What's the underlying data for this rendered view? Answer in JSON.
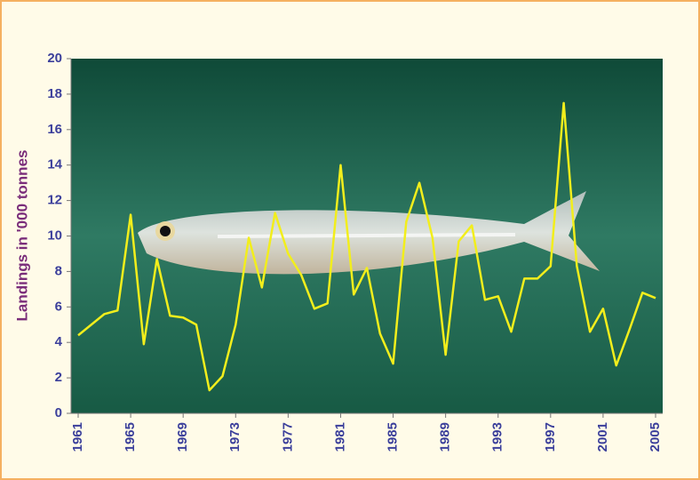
{
  "chart_data": {
    "type": "line",
    "y_label": "Landings in '000 tonnes",
    "x": [
      1961,
      1962,
      1963,
      1964,
      1965,
      1966,
      1967,
      1968,
      1969,
      1970,
      1971,
      1972,
      1973,
      1974,
      1975,
      1976,
      1977,
      1978,
      1979,
      1980,
      1981,
      1982,
      1983,
      1984,
      1985,
      1986,
      1987,
      1988,
      1989,
      1990,
      1991,
      1992,
      1993,
      1994,
      1995,
      1996,
      1997,
      1998,
      1999,
      2000,
      2001,
      2002,
      2003,
      2004,
      2005
    ],
    "series": [
      {
        "color": "#f2ee1c",
        "values": [
          4.4,
          5.0,
          5.6,
          5.8,
          11.2,
          3.9,
          8.7,
          5.5,
          5.4,
          5.0,
          1.3,
          2.1,
          5.0,
          9.9,
          7.1,
          11.3,
          9.0,
          7.8,
          5.9,
          6.2,
          14.0,
          6.7,
          8.2,
          4.5,
          2.8,
          10.8,
          13.0,
          9.9,
          3.3,
          9.7,
          10.6,
          6.4,
          6.6,
          4.6,
          7.6,
          7.6,
          8.3,
          17.5,
          8.3,
          4.6,
          5.9,
          2.7,
          4.7,
          6.8,
          6.5
        ]
      }
    ],
    "xlim": [
      1961,
      2005
    ],
    "xticks": [
      1961,
      1965,
      1969,
      1973,
      1977,
      1981,
      1985,
      1989,
      1993,
      1997,
      2001,
      2005
    ],
    "ylim": [
      0,
      20
    ],
    "yticks": [
      0,
      2,
      4,
      6,
      8,
      10,
      12,
      14,
      16,
      18,
      20
    ]
  }
}
